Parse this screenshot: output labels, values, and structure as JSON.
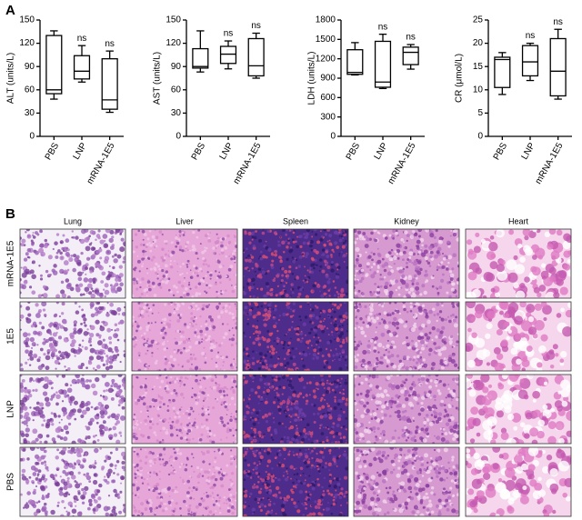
{
  "panel_a": "A",
  "panel_b": "B",
  "chart_data": [
    {
      "type": "box",
      "ylabel": "ALT (units/L)",
      "categories": [
        "PBS",
        "LNP",
        "mRNA-1E5"
      ],
      "min": [
        48,
        70,
        31
      ],
      "q1": [
        55,
        74,
        35
      ],
      "median": [
        60,
        84,
        47
      ],
      "q3": [
        130,
        104,
        100
      ],
      "max": [
        136,
        117,
        110
      ],
      "annotations": [
        null,
        "ns",
        "ns"
      ],
      "ylim": [
        0,
        150
      ],
      "yticks": [
        0,
        30,
        60,
        90,
        120,
        150
      ]
    },
    {
      "type": "box",
      "ylabel": "AST (units/L)",
      "categories": [
        "PBS",
        "LNP",
        "mRNA-1E5"
      ],
      "min": [
        83,
        87,
        75
      ],
      "q1": [
        88,
        94,
        78
      ],
      "median": [
        90,
        106,
        91
      ],
      "q3": [
        113,
        116,
        126
      ],
      "max": [
        136,
        123,
        133
      ],
      "annotations": [
        null,
        "ns",
        "ns"
      ],
      "ylim": [
        0,
        150
      ],
      "yticks": [
        0,
        30,
        60,
        90,
        120,
        150
      ]
    },
    {
      "type": "box",
      "ylabel": "LDH (units/L)",
      "categories": [
        "PBS",
        "LNP",
        "mRNA-1E5"
      ],
      "min": [
        950,
        740,
        1040
      ],
      "q1": [
        960,
        760,
        1110
      ],
      "median": [
        990,
        840,
        1300
      ],
      "q3": [
        1340,
        1470,
        1380
      ],
      "max": [
        1450,
        1580,
        1420
      ],
      "annotations": [
        null,
        "ns",
        "ns"
      ],
      "ylim": [
        0,
        1800
      ],
      "yticks": [
        0,
        300,
        600,
        900,
        1200,
        1500,
        1800
      ]
    },
    {
      "type": "box",
      "ylabel": "CR (μmol/L)",
      "categories": [
        "PBS",
        "LNP",
        "mRNA-1E5"
      ],
      "min": [
        9,
        12,
        8
      ],
      "q1": [
        10.5,
        13,
        8.7
      ],
      "median": [
        16.5,
        16,
        14
      ],
      "q3": [
        17,
        19.5,
        21
      ],
      "max": [
        18,
        20,
        23
      ],
      "annotations": [
        null,
        "ns",
        "ns"
      ],
      "ylim": [
        0,
        25
      ],
      "yticks": [
        0,
        5,
        10,
        15,
        20,
        25
      ]
    }
  ],
  "histology": {
    "columns": [
      "Lung",
      "Liver",
      "Spleen",
      "Kidney",
      "Heart"
    ],
    "rows": [
      "mRNA-1E5",
      "1E5",
      "LNP",
      "PBS"
    ]
  }
}
